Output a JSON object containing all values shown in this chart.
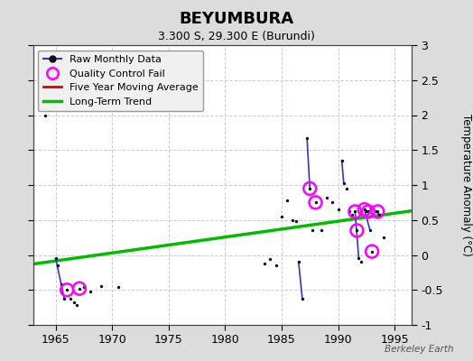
{
  "title": "BEYUMBURA",
  "subtitle": "3.300 S, 29.300 E (Burundi)",
  "ylabel_right": "Temperature Anomaly (°C)",
  "xlim": [
    1963.0,
    1996.5
  ],
  "ylim": [
    -1,
    3
  ],
  "yticks_right": [
    -1,
    -0.5,
    0,
    0.5,
    1,
    1.5,
    2,
    2.5,
    3
  ],
  "ytick_labels_right": [
    "-1",
    "-0.5",
    "0",
    "0.5",
    "1",
    "1.5",
    "2",
    "2.5",
    "3"
  ],
  "xticks": [
    1965,
    1970,
    1975,
    1980,
    1985,
    1990,
    1995
  ],
  "watermark": "Berkeley Earth",
  "fig_bg_color": "#dcdcdc",
  "plot_bg_color": "#ffffff",
  "raw_data": [
    [
      1964.1,
      2.0
    ],
    [
      1965.0,
      -0.05
    ],
    [
      1965.2,
      -0.15
    ],
    [
      1965.5,
      -0.42
    ],
    [
      1965.75,
      -0.62
    ],
    [
      1966.0,
      -0.5
    ],
    [
      1966.3,
      -0.62
    ],
    [
      1966.6,
      -0.68
    ],
    [
      1966.9,
      -0.72
    ],
    [
      1967.1,
      -0.48
    ],
    [
      1967.5,
      -0.46
    ],
    [
      1968.1,
      -0.52
    ],
    [
      1969.0,
      -0.44
    ],
    [
      1970.5,
      -0.46
    ],
    [
      1983.5,
      -0.12
    ],
    [
      1984.0,
      -0.06
    ],
    [
      1984.5,
      -0.15
    ],
    [
      1985.0,
      0.55
    ],
    [
      1985.5,
      0.78
    ],
    [
      1986.0,
      0.5
    ],
    [
      1986.3,
      0.48
    ],
    [
      1986.5,
      -0.1
    ],
    [
      1986.83,
      -0.62
    ],
    [
      1987.25,
      1.67
    ],
    [
      1987.5,
      0.95
    ],
    [
      1987.75,
      0.35
    ],
    [
      1988.0,
      0.75
    ],
    [
      1988.5,
      0.35
    ],
    [
      1989.0,
      0.82
    ],
    [
      1989.5,
      0.75
    ],
    [
      1990.0,
      0.65
    ],
    [
      1990.33,
      1.35
    ],
    [
      1990.5,
      1.02
    ],
    [
      1990.75,
      0.95
    ],
    [
      1991.0,
      0.62
    ],
    [
      1991.25,
      0.58
    ],
    [
      1991.5,
      0.62
    ],
    [
      1991.67,
      0.35
    ],
    [
      1991.83,
      -0.05
    ],
    [
      1992.0,
      -0.1
    ],
    [
      1992.33,
      0.65
    ],
    [
      1992.5,
      0.62
    ],
    [
      1992.67,
      0.62
    ],
    [
      1992.83,
      0.35
    ],
    [
      1993.0,
      0.05
    ],
    [
      1993.33,
      0.62
    ],
    [
      1993.5,
      0.62
    ],
    [
      1993.67,
      0.58
    ],
    [
      1994.0,
      0.25
    ]
  ],
  "connected_segments": [
    {
      "x": [
        1965.0,
        1965.75
      ],
      "y": [
        -0.05,
        -0.62
      ]
    },
    {
      "x": [
        1986.5,
        1986.83
      ],
      "y": [
        -0.1,
        -0.62
      ]
    },
    {
      "x": [
        1987.25,
        1987.5
      ],
      "y": [
        1.67,
        0.95
      ]
    },
    {
      "x": [
        1990.33,
        1990.5
      ],
      "y": [
        1.35,
        1.02
      ]
    },
    {
      "x": [
        1991.5,
        1991.83
      ],
      "y": [
        0.62,
        -0.05
      ]
    },
    {
      "x": [
        1992.33,
        1992.83
      ],
      "y": [
        0.65,
        0.35
      ]
    },
    {
      "x": [
        1993.33,
        1993.67
      ],
      "y": [
        0.62,
        0.58
      ]
    }
  ],
  "qc_fail_points": [
    [
      1966.0,
      -0.5
    ],
    [
      1967.1,
      -0.48
    ],
    [
      1987.5,
      0.95
    ],
    [
      1988.0,
      0.75
    ],
    [
      1991.5,
      0.62
    ],
    [
      1991.67,
      0.35
    ],
    [
      1992.33,
      0.65
    ],
    [
      1992.67,
      0.62
    ],
    [
      1993.0,
      0.05
    ],
    [
      1993.5,
      0.62
    ]
  ],
  "trend_x": [
    1963.0,
    1996.5
  ],
  "trend_y": [
    -0.13,
    0.63
  ],
  "raw_line_color": "#3333cc",
  "raw_dot_color": "#111111",
  "qc_color": "#ff00ff",
  "trend_color": "#00bb00",
  "moving_avg_color": "#dd0000"
}
